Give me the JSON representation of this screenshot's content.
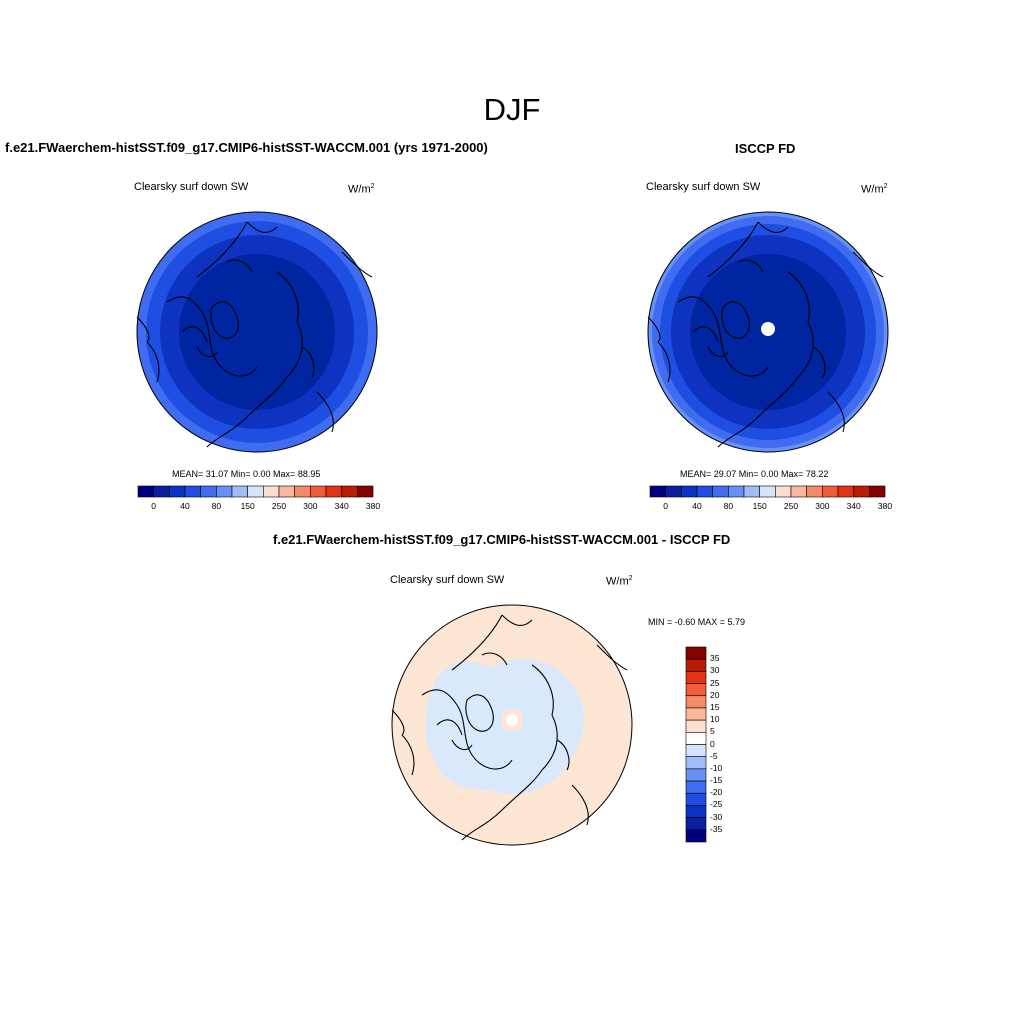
{
  "season_title": "DJF",
  "panels": [
    {
      "title": "f.e21.FWaerchem-histSST.f09_g17.CMIP6-histSST-WACCM.001 (yrs 1971-2000)",
      "variable": "Clearsky surf down SW",
      "units_base": "W/m",
      "units_exp": "2",
      "stats": "MEAN=  31.07  Min=   0.00  Max=  88.95",
      "colorbar_ticks": [
        "0",
        "40",
        "80",
        "150",
        "250",
        "300",
        "340",
        "380"
      ]
    },
    {
      "title": "ISCCP FD",
      "variable": "Clearsky surf down SW",
      "units_base": "W/m",
      "units_exp": "2",
      "stats": "MEAN=  29.07  Min=   0.00  Max=  78.22",
      "colorbar_ticks": [
        "0",
        "40",
        "80",
        "150",
        "250",
        "300",
        "340",
        "380"
      ]
    },
    {
      "title": "f.e21.FWaerchem-histSST.f09_g17.CMIP6-histSST-WACCM.001 - ISCCP FD",
      "variable": "Clearsky surf down SW",
      "units_base": "W/m",
      "units_exp": "2",
      "stats": "MIN =  -0.60 MAX =   5.79",
      "colorbar_ticks": [
        "35",
        "30",
        "25",
        "20",
        "15",
        "10",
        "5",
        "0",
        "-5",
        "-10",
        "-15",
        "-20",
        "-25",
        "-30",
        "-35"
      ]
    }
  ],
  "chart_data": [
    {
      "type": "heatmap",
      "projection": "north polar stereographic",
      "title": "f.e21.FWaerchem-histSST.f09_g17.CMIP6-histSST-WACCM.001 (yrs 1971-2000)",
      "variable": "Clearsky surf down SW",
      "units": "W/m2",
      "mean": 31.07,
      "min": 0.0,
      "max": 88.95,
      "colorbar_levels": [
        0,
        40,
        80,
        150,
        250,
        300,
        340,
        380
      ],
      "colors": [
        "#00007f",
        "#0a1ea0",
        "#0b33c2",
        "#1f4fe2",
        "#3f6cf0",
        "#6691f6",
        "#a0bdf9",
        "#d4e4fc",
        "#fde0cf",
        "#fbb89c",
        "#f58c68",
        "#ef5e38",
        "#e23414",
        "#b91c05",
        "#870000"
      ],
      "field_colors": [
        "#0025a0",
        "#0d33c0",
        "#1f4fe2",
        "#3f6cf0"
      ],
      "legend_position": "bottom"
    },
    {
      "type": "heatmap",
      "projection": "north polar stereographic",
      "title": "ISCCP FD",
      "variable": "Clearsky surf down SW",
      "units": "W/m2",
      "mean": 29.07,
      "min": 0.0,
      "max": 78.22,
      "colorbar_levels": [
        0,
        40,
        80,
        150,
        250,
        300,
        340,
        380
      ],
      "colors": [
        "#00007f",
        "#0a1ea0",
        "#0b33c2",
        "#1f4fe2",
        "#3f6cf0",
        "#6691f6",
        "#a0bdf9",
        "#d4e4fc",
        "#fde0cf",
        "#fbb89c",
        "#f58c68",
        "#ef5e38",
        "#e23414",
        "#b91c05",
        "#870000"
      ],
      "field_colors": [
        "#0025a0",
        "#0d33c0",
        "#1f4fe2",
        "#3f6cf0",
        "#6691f6"
      ],
      "legend_position": "bottom"
    },
    {
      "type": "heatmap",
      "projection": "north polar stereographic",
      "title": "f.e21.FWaerchem-histSST.f09_g17.CMIP6-histSST-WACCM.001 - ISCCP FD",
      "variable": "Clearsky surf down SW",
      "units": "W/m2",
      "min": -0.6,
      "max": 5.79,
      "colorbar_levels": [
        35,
        30,
        25,
        20,
        15,
        10,
        5,
        0,
        -5,
        -10,
        -15,
        -20,
        -25,
        -30,
        -35
      ],
      "colors": [
        "#870000",
        "#b91c05",
        "#e23414",
        "#ef5e38",
        "#f58c68",
        "#fbb89c",
        "#fde0cf",
        "#ffffff",
        "#d4e4fc",
        "#a0bdf9",
        "#6691f6",
        "#3f6cf0",
        "#1f4fe2",
        "#0b33c2",
        "#0a1ea0",
        "#00007f"
      ],
      "field_colors": [
        "#fde6d4",
        "#d9e8fb"
      ],
      "legend_position": "right"
    }
  ]
}
